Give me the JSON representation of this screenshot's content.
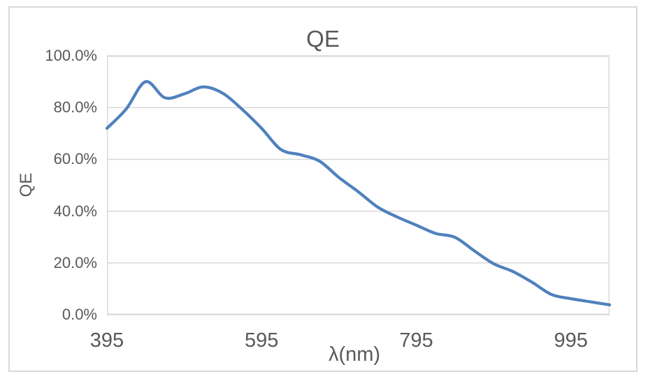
{
  "chart": {
    "title": "QE",
    "x_axis_title": "λ(nm)",
    "y_axis_title": "QE"
  },
  "chart_data": {
    "type": "line",
    "title": "QE",
    "xlabel": "λ(nm)",
    "ylabel": "QE",
    "xlim": [
      395,
      1045
    ],
    "ylim": [
      0,
      100
    ],
    "x_ticks": [
      395,
      595,
      795,
      995
    ],
    "y_ticks": [
      {
        "label": "0.0%",
        "value": 0
      },
      {
        "label": "20.0%",
        "value": 20
      },
      {
        "label": "40.0%",
        "value": 40
      },
      {
        "label": "60.0%",
        "value": 60
      },
      {
        "label": "80.0%",
        "value": 80
      },
      {
        "label": "100.0%",
        "value": 100
      }
    ],
    "grid": true,
    "legend": "none",
    "series": [
      {
        "name": "QE",
        "color": "#4F81BD",
        "smooth": true,
        "x": [
          395,
          420,
          445,
          470,
          495,
          520,
          545,
          570,
          595,
          620,
          645,
          670,
          695,
          720,
          745,
          770,
          795,
          820,
          845,
          870,
          895,
          920,
          945,
          970,
          995,
          1020,
          1045
        ],
        "values": [
          72.0,
          79.5,
          90.0,
          83.8,
          85.3,
          88.0,
          85.5,
          79.3,
          72.0,
          63.8,
          61.8,
          59.3,
          53.0,
          47.5,
          41.6,
          37.8,
          34.6,
          31.4,
          29.9,
          24.7,
          19.7,
          16.7,
          12.5,
          7.8,
          6.2,
          5.0,
          3.8
        ]
      }
    ]
  },
  "colors": {
    "line": "#4F81BD",
    "grid": "#D9D9D9",
    "plot_border": "#D9D9D9",
    "frame_border": "#D9D9D9",
    "text": "#595959",
    "background": "#FFFFFF"
  }
}
